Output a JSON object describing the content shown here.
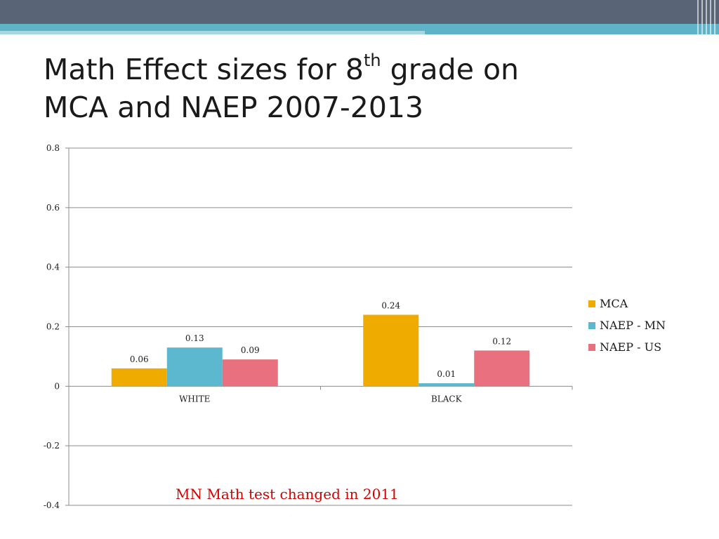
{
  "title": {
    "prefix": "Math Effect sizes for 8",
    "sup": "th",
    "suffix": " grade on",
    "line2": "MCA and NAEP 2007-2013"
  },
  "note": "MN Math test changed in 2011",
  "chart_data": {
    "type": "bar",
    "categories": [
      "WHITE",
      "BLACK"
    ],
    "series": [
      {
        "name": "MCA",
        "values": [
          0.06,
          0.24
        ],
        "color": "#f0ab00"
      },
      {
        "name": "NAEP - MN",
        "values": [
          0.13,
          0.01
        ],
        "color": "#5bb8cf"
      },
      {
        "name": "NAEP - US",
        "values": [
          0.09,
          0.12
        ],
        "color": "#e8707f"
      }
    ],
    "data_labels": [
      [
        "0.06",
        "0.24"
      ],
      [
        "0.13",
        "0.01"
      ],
      [
        "0.09",
        "0.12"
      ]
    ],
    "ylim": [
      -0.4,
      0.8
    ],
    "yticks": [
      0.8,
      0.6,
      0.4,
      0.2,
      0,
      -0.2,
      -0.4
    ],
    "ytick_labels": [
      "0.8",
      "0.6",
      "0.4",
      "0.2",
      "0",
      "-0.2",
      "-0.4"
    ],
    "grid": true,
    "legend": "right",
    "title": "",
    "xlabel": "",
    "ylabel": ""
  }
}
